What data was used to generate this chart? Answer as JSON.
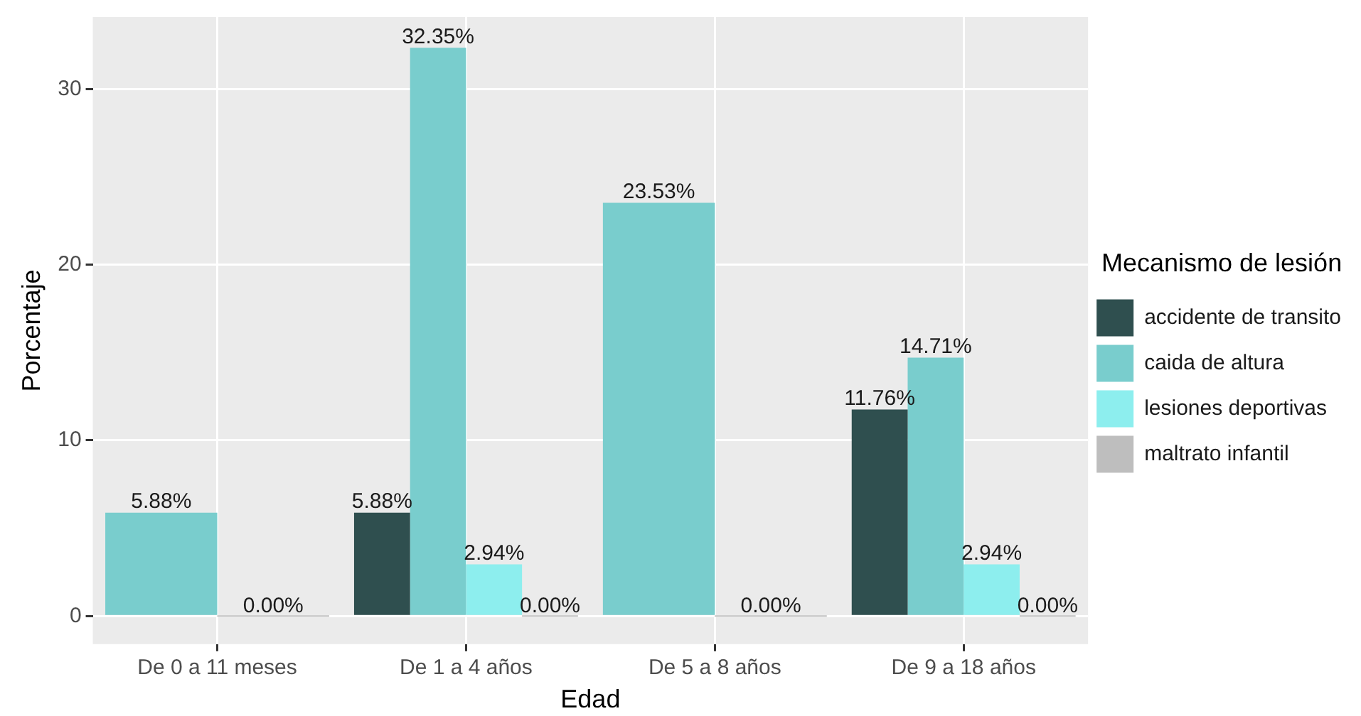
{
  "chart_data": {
    "type": "bar",
    "xlabel": "Edad",
    "ylabel": "Porcentaje",
    "legend_title": "Mecanismo de lesión",
    "legend": "right",
    "grid": true,
    "categories": [
      "De 0 a 11 meses",
      "De 1 a 4 años",
      "De 5 a 8 años",
      "De 9 a 18 años"
    ],
    "ylim": [
      -1.6,
      34.1
    ],
    "yticks": [
      0,
      10,
      20,
      30
    ],
    "series": [
      {
        "name": "accidente de transito",
        "color": "#2f4f4f",
        "values": [
          null,
          5.88,
          null,
          11.76
        ],
        "value_labels": [
          null,
          "5.88%",
          null,
          "11.76%"
        ]
      },
      {
        "name": "caida de altura",
        "color": "#79cdcd",
        "values": [
          5.88,
          32.35,
          23.53,
          14.71
        ],
        "value_labels": [
          "5.88%",
          "32.35%",
          "23.53%",
          "14.71%"
        ]
      },
      {
        "name": "lesiones deportivas",
        "color": "#8deeee",
        "values": [
          null,
          2.94,
          null,
          2.94
        ],
        "value_labels": [
          null,
          "2.94%",
          null,
          "2.94%"
        ]
      },
      {
        "name": "maltrato infantil",
        "color": "#bebebe",
        "values": [
          0,
          0,
          0,
          0
        ],
        "value_labels": [
          "0.00%",
          "0.00%",
          "0.00%",
          "0.00%"
        ]
      }
    ]
  }
}
